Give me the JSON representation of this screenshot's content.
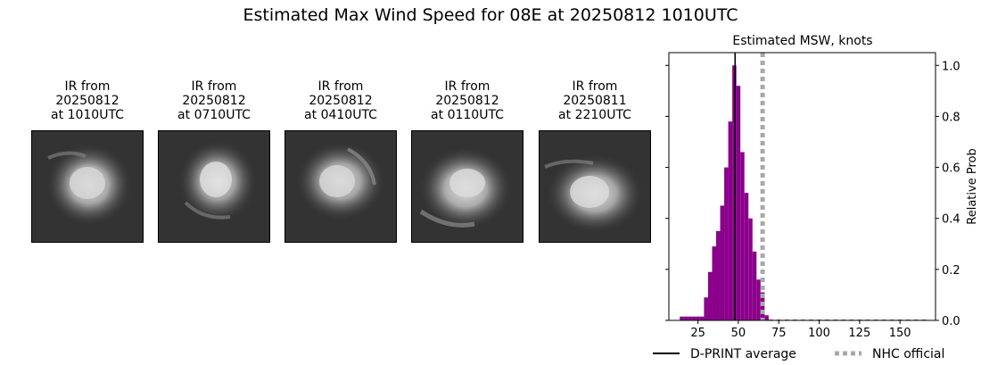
{
  "title": "Estimated Max Wind Speed for 08E at 20250812 1010UTC",
  "ir_panels": [
    {
      "line1": "IR from",
      "line2": "20250812",
      "line3": "at 1010UTC"
    },
    {
      "line1": "IR from",
      "line2": "20250812",
      "line3": "at 0710UTC"
    },
    {
      "line1": "IR from",
      "line2": "20250812",
      "line3": "at 0410UTC"
    },
    {
      "line1": "IR from",
      "line2": "20250812",
      "line3": "at 0110UTC"
    },
    {
      "line1": "IR from",
      "line2": "20250811",
      "line3": "at 2210UTC"
    }
  ],
  "chart_data": {
    "type": "bar",
    "title": "Estimated MSW, knots",
    "xlabel": "",
    "ylabel": "Relative Prob",
    "xlim": [
      7,
      172
    ],
    "ylim": [
      0,
      1.05
    ],
    "xticks": [
      25,
      50,
      75,
      100,
      125,
      150
    ],
    "yticks": [
      0.0,
      0.2,
      0.4,
      0.6,
      0.8,
      1.0
    ],
    "ytick_labels": [
      "0.0",
      "0.2",
      "0.4",
      "0.6",
      "0.8",
      "1.0"
    ],
    "y_axis_side": "right",
    "bin_width": 2.5,
    "bins": [
      {
        "x": 15,
        "y": 0.015
      },
      {
        "x": 17.5,
        "y": 0.015
      },
      {
        "x": 20,
        "y": 0.015
      },
      {
        "x": 22.5,
        "y": 0.015
      },
      {
        "x": 25,
        "y": 0.015
      },
      {
        "x": 27.5,
        "y": 0.015
      },
      {
        "x": 30,
        "y": 0.09
      },
      {
        "x": 32.5,
        "y": 0.19
      },
      {
        "x": 35,
        "y": 0.29
      },
      {
        "x": 37.5,
        "y": 0.35
      },
      {
        "x": 40,
        "y": 0.45
      },
      {
        "x": 42.5,
        "y": 0.6
      },
      {
        "x": 45,
        "y": 0.78
      },
      {
        "x": 47.5,
        "y": 1.0
      },
      {
        "x": 50,
        "y": 0.92
      },
      {
        "x": 52.5,
        "y": 0.66
      },
      {
        "x": 55,
        "y": 0.5
      },
      {
        "x": 57.5,
        "y": 0.4
      },
      {
        "x": 60,
        "y": 0.27
      },
      {
        "x": 62.5,
        "y": 0.16
      },
      {
        "x": 65,
        "y": 0.11
      },
      {
        "x": 67.5,
        "y": 0.02
      },
      {
        "x": 70,
        "y": 0.003
      },
      {
        "x": 75,
        "y": 0.003
      },
      {
        "x": 80,
        "y": 0.003
      },
      {
        "x": 85,
        "y": 0.003
      },
      {
        "x": 90,
        "y": 0.003
      },
      {
        "x": 95,
        "y": 0.003
      },
      {
        "x": 100,
        "y": 0.003
      },
      {
        "x": 105,
        "y": 0.003
      },
      {
        "x": 110,
        "y": 0.003
      },
      {
        "x": 115,
        "y": 0.003
      },
      {
        "x": 120,
        "y": 0.003
      },
      {
        "x": 125,
        "y": 0.003
      },
      {
        "x": 130,
        "y": 0.003
      },
      {
        "x": 135,
        "y": 0.003
      },
      {
        "x": 140,
        "y": 0.003
      },
      {
        "x": 145,
        "y": 0.003
      },
      {
        "x": 150,
        "y": 0.003
      },
      {
        "x": 155,
        "y": 0.003
      },
      {
        "x": 160,
        "y": 0.003
      },
      {
        "x": 165,
        "y": 0.003
      }
    ],
    "bar_color": "#8b008b",
    "reference_lines": [
      {
        "name": "D-PRINT average",
        "x": 48,
        "color": "#000000",
        "style": "solid"
      },
      {
        "name": "NHC official",
        "x": 65,
        "color": "#a9a9a9",
        "style": "dotted"
      }
    ],
    "legend": "bottom"
  }
}
